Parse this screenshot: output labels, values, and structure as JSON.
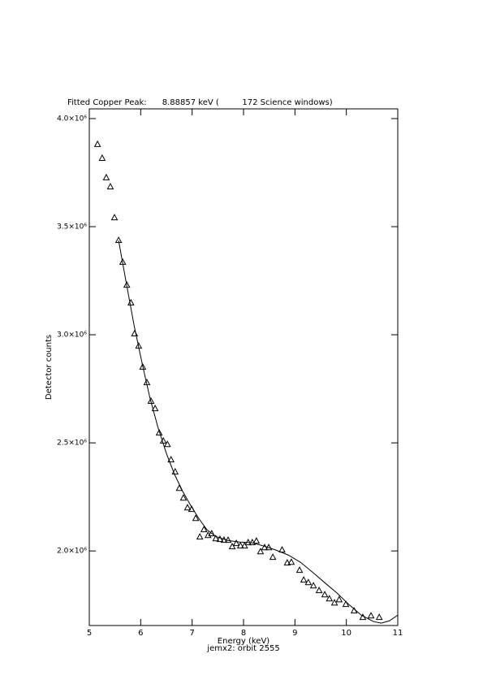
{
  "chart_data": {
    "type": "scatter",
    "title": "Fitted Copper Peak:      8.88857 keV (         172 Science windows)",
    "x_label": "Energy (keV)",
    "subtitle": "jemx2: orbit 2555",
    "y_label": "Detector counts",
    "xlim": [
      5,
      11
    ],
    "xticks": [
      5,
      6,
      7,
      8,
      9,
      10,
      11
    ],
    "ylim": [
      1655000,
      4045000
    ],
    "yticks": [
      {
        "value": 2000000,
        "label": "2.0×10⁶"
      },
      {
        "value": 2500000,
        "label": "2.5×10⁶"
      },
      {
        "value": 3000000,
        "label": "3.0×10⁶"
      },
      {
        "value": 3500000,
        "label": "3.5×10⁶"
      },
      {
        "value": 4000000,
        "label": "4.0×10⁶"
      }
    ],
    "series": [
      {
        "color": "#000000",
        "marker": "triangle",
        "x": [
          5.16,
          5.25,
          5.33,
          5.41,
          5.49,
          5.57,
          5.65,
          5.73,
          5.81,
          5.88,
          5.96,
          6.04,
          6.12,
          6.2,
          6.28,
          6.36,
          6.44,
          6.52,
          6.59,
          6.67,
          6.75,
          6.83,
          6.91,
          6.99,
          7.07,
          7.15,
          7.23,
          7.31,
          7.38,
          7.46,
          7.54,
          7.62,
          7.7,
          7.78,
          7.86,
          7.94,
          8.02,
          8.09,
          8.17,
          8.25,
          8.33,
          8.41,
          8.49,
          8.57,
          8.75,
          8.85,
          8.93,
          9.09,
          9.17,
          9.26,
          9.36,
          9.47,
          9.58,
          9.67,
          9.77,
          9.86,
          9.99,
          10.15,
          10.32,
          10.48,
          10.64
        ],
        "values": [
          3880000,
          3816000,
          3726000,
          3684000,
          3541000,
          3436000,
          3335000,
          3229000,
          3147000,
          3004000,
          2947000,
          2850000,
          2778000,
          2692000,
          2658000,
          2545000,
          2508000,
          2492000,
          2421000,
          2365000,
          2289000,
          2244000,
          2199000,
          2192000,
          2150000,
          2064000,
          2098000,
          2071000,
          2079000,
          2056000,
          2053000,
          2049000,
          2049000,
          2019000,
          2034000,
          2023000,
          2023000,
          2038000,
          2038000,
          2045000,
          1996000,
          2015000,
          2015000,
          1970000,
          2004000,
          1944000,
          1947000,
          1910000,
          1865000,
          1853000,
          1838000,
          1816000,
          1797000,
          1778000,
          1759000,
          1774000,
          1752000,
          1722000,
          1692000,
          1699000,
          1692000
        ]
      },
      {
        "color": "#000000",
        "marker": "line",
        "x": [
          5.57,
          5.71,
          5.87,
          6.03,
          6.18,
          6.34,
          6.5,
          6.66,
          6.82,
          6.97,
          7.13,
          7.29,
          7.45,
          7.68,
          7.92,
          8.16,
          8.39,
          8.63,
          8.87,
          9.11,
          9.34,
          9.58,
          9.82,
          10.05,
          10.29,
          10.53,
          10.68,
          10.84,
          11
        ],
        "values": [
          3436000,
          3252000,
          3045000,
          2865000,
          2707000,
          2568000,
          2451000,
          2353000,
          2274000,
          2211000,
          2150000,
          2098000,
          2068000,
          2049000,
          2041000,
          2038000,
          2023000,
          2004000,
          1981000,
          1947000,
          1902000,
          1853000,
          1805000,
          1752000,
          1703000,
          1673000,
          1666000,
          1677000,
          1703000
        ]
      }
    ]
  }
}
